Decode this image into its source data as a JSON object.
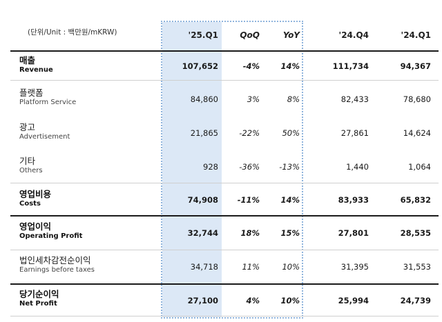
{
  "unit_label": "(단위/Unit : 백만원/mKRW)",
  "headers": [
    "'25.Q1",
    "QoQ",
    "YoY",
    "'24.Q4",
    "'24.Q1"
  ],
  "rows": [
    {
      "ko": "매출",
      "en": "Revenue",
      "values": [
        "107,652",
        "-4%",
        "14%",
        "111,734",
        "94,367"
      ],
      "bold": true
    },
    {
      "ko": "플랫폼",
      "en": "Platform Service",
      "values": [
        "84,860",
        "3%",
        "8%",
        "82,433",
        "78,680"
      ],
      "bold": false
    },
    {
      "ko": "광고",
      "en": "Advertisement",
      "values": [
        "21,865",
        "-22%",
        "50%",
        "27,861",
        "14,624"
      ],
      "bold": false
    },
    {
      "ko": "기타",
      "en": "Others",
      "values": [
        "928",
        "-36%",
        "-13%",
        "1,440",
        "1,064"
      ],
      "bold": false
    },
    {
      "ko": "영업비용",
      "en": "Costs",
      "values": [
        "74,908",
        "-11%",
        "14%",
        "83,933",
        "65,832"
      ],
      "bold": true
    },
    {
      "ko": "영업이익",
      "en": "Operating Profit",
      "values": [
        "32,744",
        "18%",
        "15%",
        "27,801",
        "28,535"
      ],
      "bold": true
    },
    {
      "ko": "법인세차감전순이익",
      "en": "Earnings before taxes",
      "values": [
        "34,718",
        "11%",
        "10%",
        "31,395",
        "31,553"
      ],
      "bold": false
    },
    {
      "ko": "당기순이익",
      "en": "Net Profit",
      "values": [
        "27,100",
        "4%",
        "10%",
        "25,994",
        "24,739"
      ],
      "bold": true
    }
  ],
  "colors": {
    "highlight_fill": "#dce8f6",
    "highlight_border": "#8fb4dd"
  }
}
